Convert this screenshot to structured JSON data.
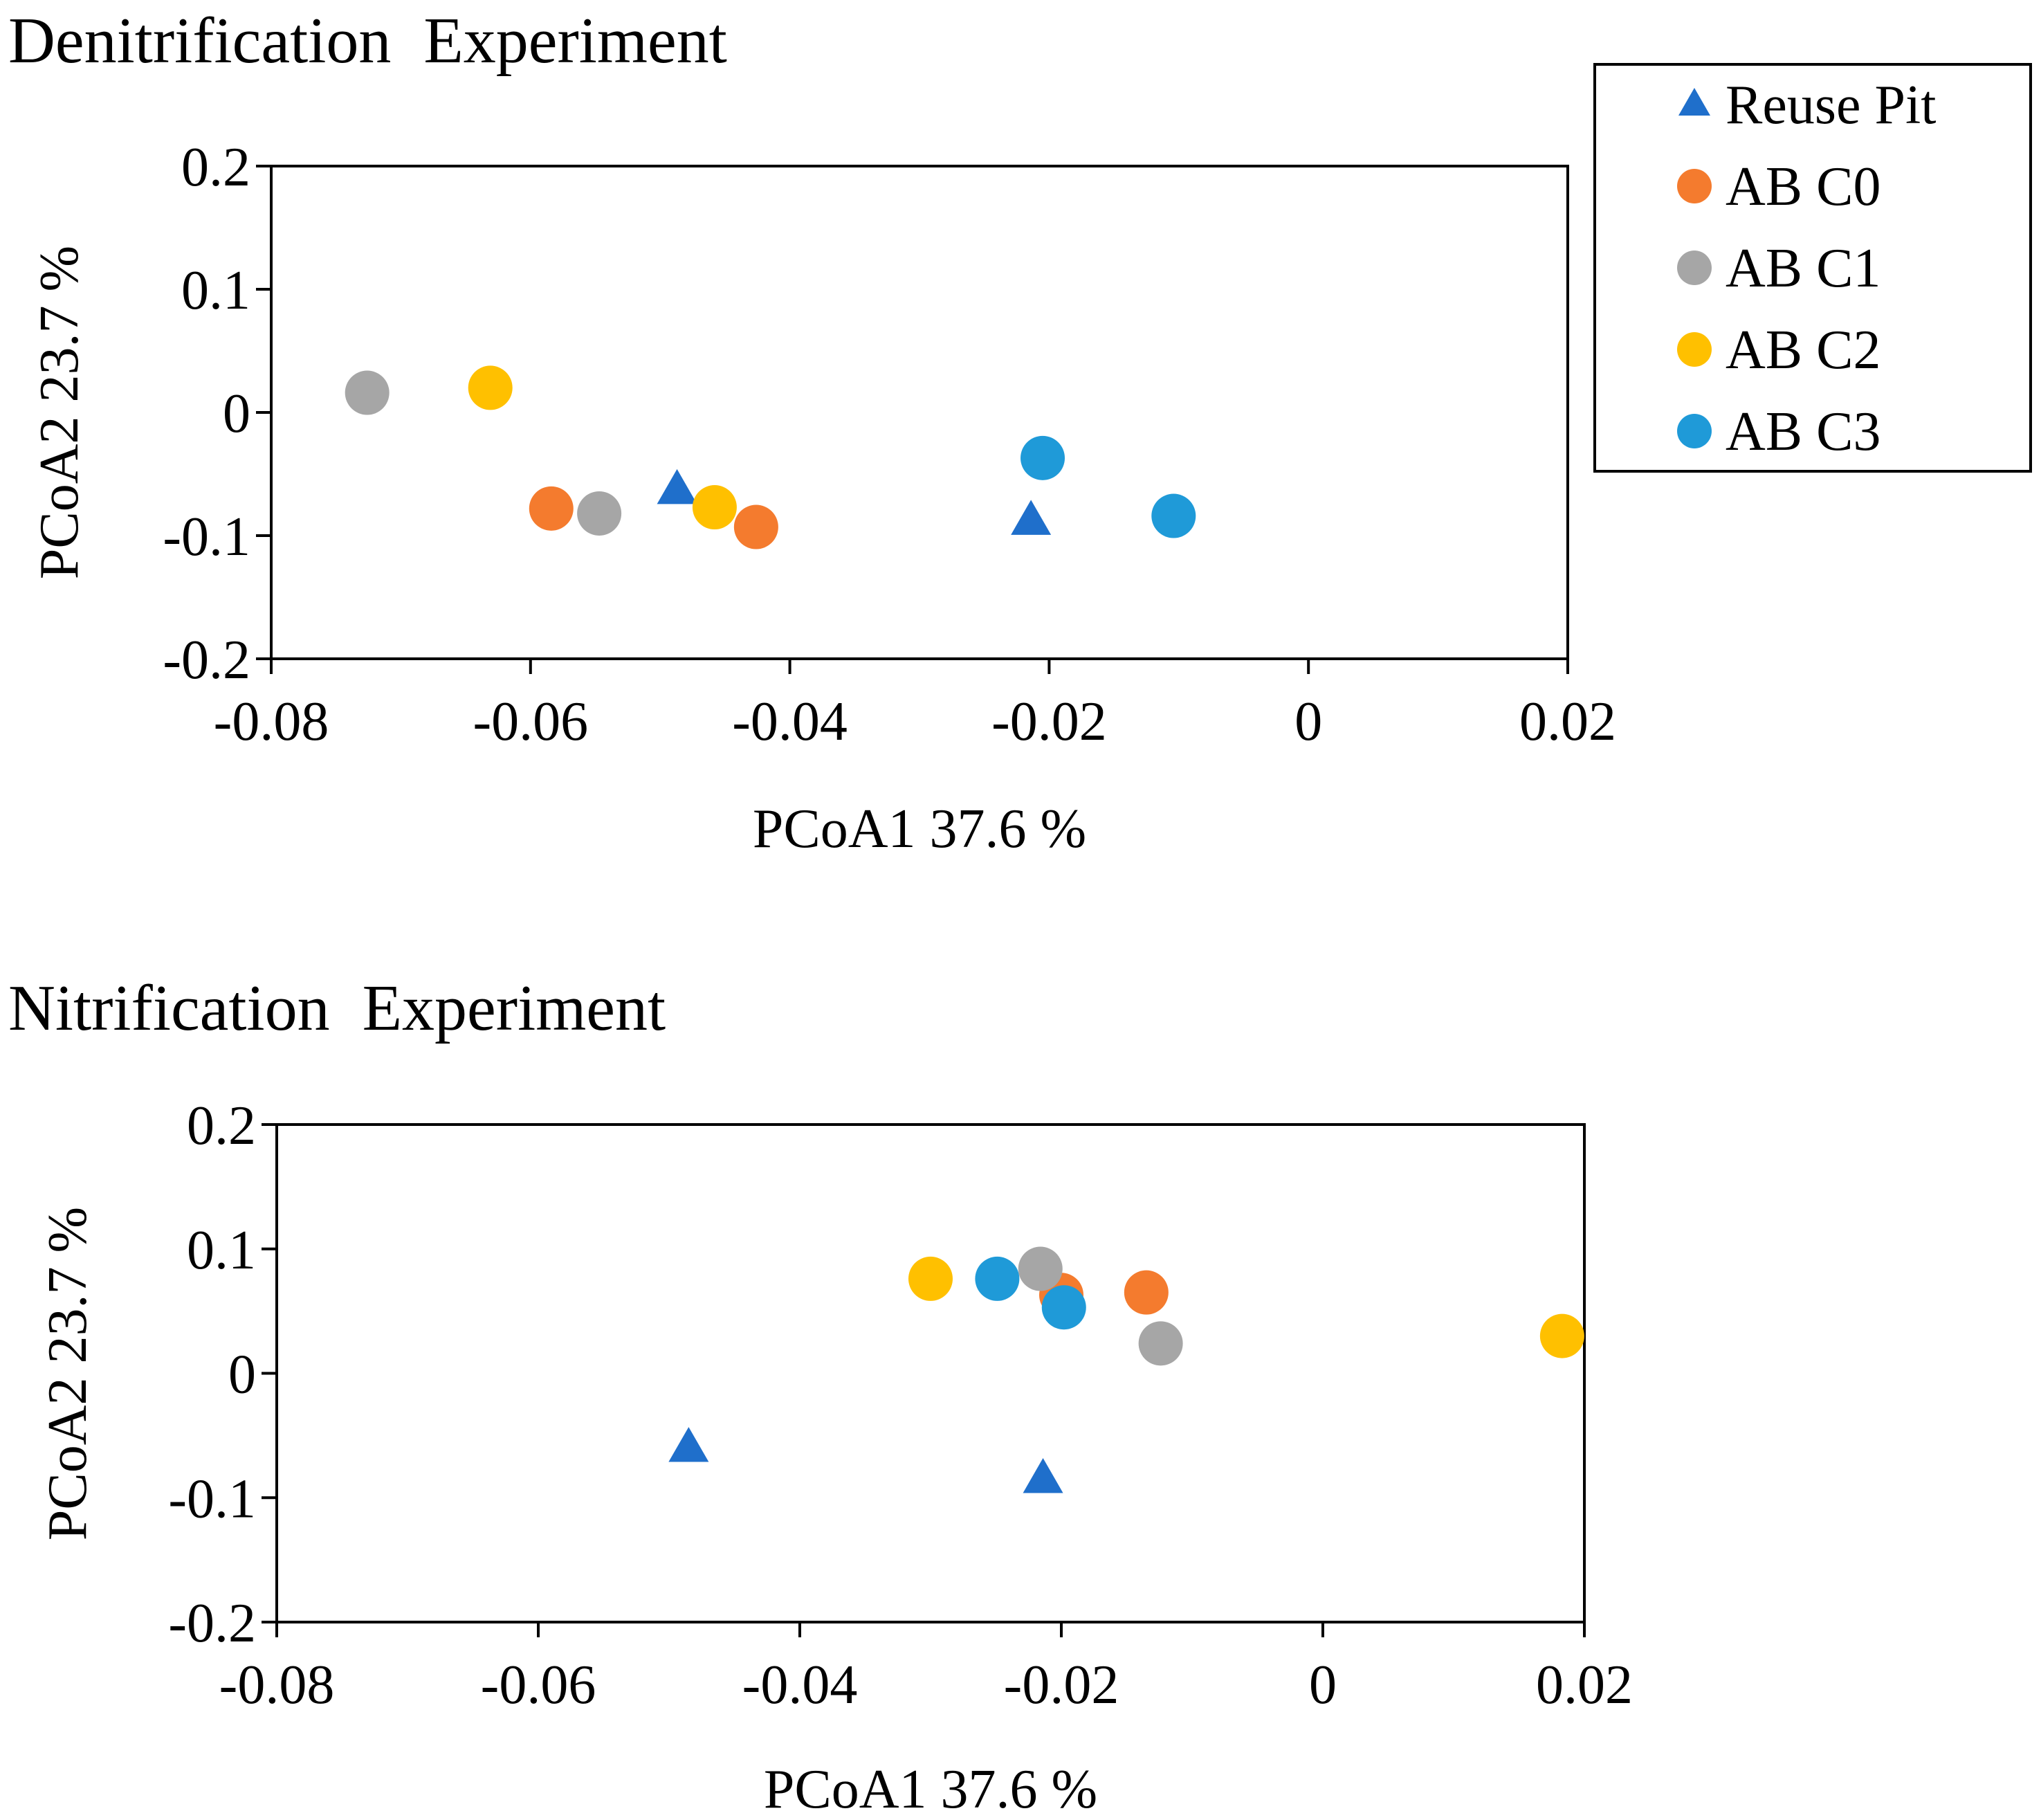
{
  "colors": {
    "reuse_pit": "#1f6fcb",
    "ab_c0": "#f47b2e",
    "ab_c1": "#a6a6a6",
    "ab_c2": "#ffc000",
    "ab_c3": "#1f9ad8"
  },
  "legend": {
    "items": [
      {
        "key": "reuse_pit",
        "label": "Reuse Pit",
        "marker": "triangle"
      },
      {
        "key": "ab_c0",
        "label": "AB C0",
        "marker": "circle"
      },
      {
        "key": "ab_c1",
        "label": "AB C1",
        "marker": "circle"
      },
      {
        "key": "ab_c2",
        "label": "AB C2",
        "marker": "circle"
      },
      {
        "key": "ab_c3",
        "label": "AB C3",
        "marker": "circle"
      }
    ]
  },
  "chart_data": [
    {
      "type": "scatter",
      "title": "Denitrification  Experiment",
      "xlabel": "PCoA1 37.6 %",
      "ylabel": "PCoA2 23.7 %",
      "xlim": [
        -0.08,
        0.02
      ],
      "ylim": [
        -0.2,
        0.2
      ],
      "xticks": [
        -0.08,
        -0.06,
        -0.04,
        -0.02,
        0,
        0.02
      ],
      "xtick_labels": [
        "-0.08",
        "-0.06",
        "-0.04",
        "-0.02",
        "0",
        "0.02"
      ],
      "yticks": [
        -0.2,
        -0.1,
        0,
        0.1,
        0.2
      ],
      "ytick_labels": [
        "-0.2",
        "-0.1",
        "0",
        "0.1",
        "0.2"
      ],
      "series": [
        {
          "name": "Reuse Pit",
          "key": "reuse_pit",
          "marker": "triangle",
          "points": [
            [
              -0.0487,
              -0.063
            ],
            [
              -0.0214,
              -0.088
            ]
          ]
        },
        {
          "name": "AB C0",
          "key": "ab_c0",
          "marker": "circle",
          "points": [
            [
              -0.0584,
              -0.078
            ],
            [
              -0.0426,
              -0.093
            ]
          ]
        },
        {
          "name": "AB C1",
          "key": "ab_c1",
          "marker": "circle",
          "points": [
            [
              -0.0726,
              0.016
            ],
            [
              -0.0547,
              -0.082
            ]
          ]
        },
        {
          "name": "AB C2",
          "key": "ab_c2",
          "marker": "circle",
          "points": [
            [
              -0.0631,
              0.02
            ],
            [
              -0.0458,
              -0.077
            ]
          ]
        },
        {
          "name": "AB C3",
          "key": "ab_c3",
          "marker": "circle",
          "points": [
            [
              -0.0205,
              -0.037
            ],
            [
              -0.0104,
              -0.084
            ]
          ]
        }
      ]
    },
    {
      "type": "scatter",
      "title": "Nitrification  Experiment",
      "xlabel": "PCoA1 37.6 %",
      "ylabel": "PCoA2 23.7 %",
      "xlim": [
        -0.08,
        0.02
      ],
      "ylim": [
        -0.2,
        0.2
      ],
      "xticks": [
        -0.08,
        -0.06,
        -0.04,
        -0.02,
        0,
        0.02
      ],
      "xtick_labels": [
        "-0.08",
        "-0.06",
        "-0.04",
        "-0.02",
        "0",
        "0.02"
      ],
      "yticks": [
        -0.2,
        -0.1,
        0,
        0.1,
        0.2
      ],
      "ytick_labels": [
        "-0.2",
        "-0.1",
        "0",
        "0.1",
        "0.2"
      ],
      "series": [
        {
          "name": "Reuse Pit",
          "key": "reuse_pit",
          "marker": "triangle",
          "points": [
            [
              -0.0485,
              -0.06
            ],
            [
              -0.0214,
              -0.085
            ]
          ]
        },
        {
          "name": "AB C0",
          "key": "ab_c0",
          "marker": "circle",
          "points": [
            [
              -0.02,
              0.063
            ],
            [
              -0.0135,
              0.065
            ]
          ]
        },
        {
          "name": "AB C1",
          "key": "ab_c1",
          "marker": "circle",
          "points": [
            [
              -0.0216,
              0.084
            ],
            [
              -0.0124,
              0.024
            ]
          ]
        },
        {
          "name": "AB C2",
          "key": "ab_c2",
          "marker": "circle",
          "points": [
            [
              -0.03,
              0.076
            ],
            [
              0.0183,
              0.03
            ]
          ]
        },
        {
          "name": "AB C3",
          "key": "ab_c3",
          "marker": "circle",
          "points": [
            [
              -0.0249,
              0.076
            ],
            [
              -0.0198,
              0.053
            ]
          ]
        }
      ]
    }
  ]
}
